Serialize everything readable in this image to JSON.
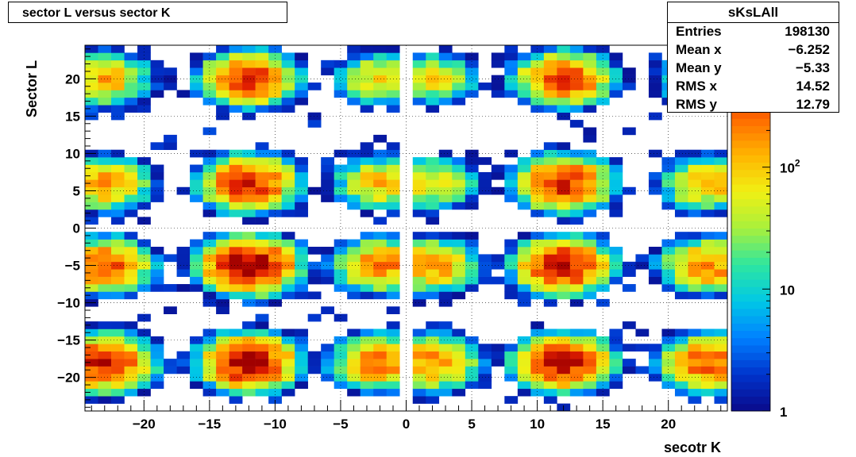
{
  "chart_data": {
    "type": "heatmap",
    "title": "sector L versus sector K",
    "xlabel": "secotr K",
    "ylabel": "Sector L",
    "xlim": [
      -24.5,
      24.5
    ],
    "ylim": [
      -24.5,
      24.5
    ],
    "x_ticks": [
      -20,
      -15,
      -10,
      -5,
      0,
      5,
      10,
      15,
      20
    ],
    "x_tick_labels": [
      "−20",
      "−15",
      "−10",
      "−5",
      "0",
      "5",
      "10",
      "15",
      "20"
    ],
    "y_ticks": [
      -20,
      -15,
      -10,
      -5,
      0,
      5,
      10,
      15,
      20
    ],
    "y_tick_labels": [
      "−20",
      "−15",
      "−10",
      "−5",
      "0",
      "5",
      "10",
      "15",
      "20"
    ],
    "z_scale": "log",
    "zlim": [
      1,
      1000
    ],
    "z_tick_labels": [
      "1",
      "10",
      "10^2"
    ],
    "palette": [
      "#0a0a8a",
      "#0033cc",
      "#0080ff",
      "#00c8e6",
      "#2ee6a0",
      "#a8f03c",
      "#f0f014",
      "#ffb400",
      "#ff6a00",
      "#e01e00",
      "#a00000"
    ],
    "grid": true,
    "cluster_centers": {
      "x": [
        -23,
        -12,
        -2,
        2,
        12,
        23
      ],
      "y": [
        20,
        6,
        -5,
        -18
      ]
    },
    "cluster_peaks_log10": [
      [
        2.1,
        2.6,
        1.9,
        1.8,
        2.6,
        2.0
      ],
      [
        2.2,
        2.7,
        2.0,
        1.9,
        2.7,
        2.1
      ],
      [
        2.5,
        3.0,
        2.3,
        2.2,
        2.8,
        2.3
      ],
      [
        2.8,
        2.9,
        2.4,
        2.3,
        2.8,
        2.5
      ]
    ],
    "stats": {
      "name": "sKsLAll",
      "entries": "198130",
      "mean_x": "−6.252",
      "mean_y": "−5.33",
      "rms_x": "14.52",
      "rms_y": "12.79"
    }
  },
  "stats_labels": {
    "entries": "Entries",
    "mean_x": "Mean x",
    "mean_y": "Mean y",
    "rms_x": "RMS x",
    "rms_y": "RMS y"
  }
}
